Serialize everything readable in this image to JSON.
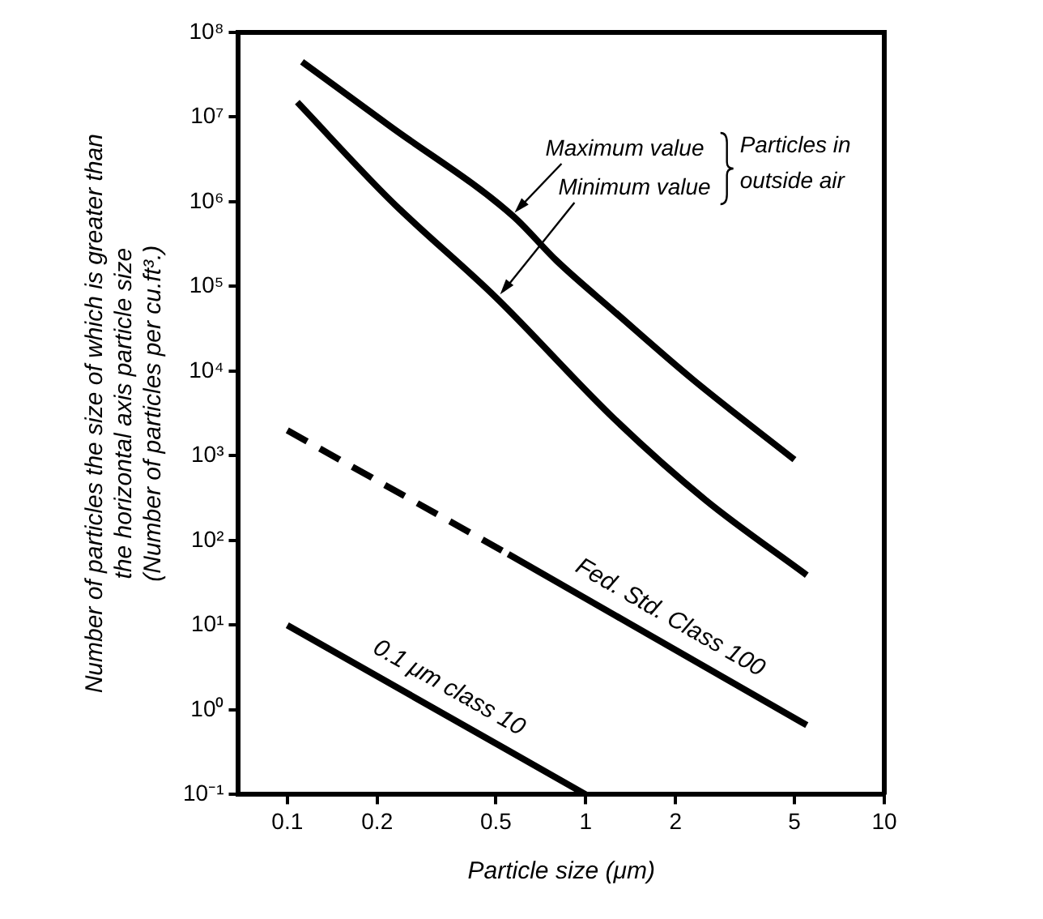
{
  "chart_data": {
    "type": "line",
    "xlabel": "Particle size (μm)",
    "ylabel": "Number of particles the size of which is greater than\nthe horizontal axis particle size\n(Number of particles per cu.ft³.)",
    "log": "xy",
    "xlim": [
      0.0686,
      10
    ],
    "ylim": [
      0.1,
      100000000
    ],
    "xticks": [
      0.1,
      0.2,
      0.5,
      1,
      2,
      5,
      10
    ],
    "yticks": [
      {
        "value": 0.1,
        "label": "10⁻¹"
      },
      {
        "value": 1,
        "label": "10⁰"
      },
      {
        "value": 10,
        "label": "10¹"
      },
      {
        "value": 100,
        "label": "10²"
      },
      {
        "value": 1000,
        "label": "10³"
      },
      {
        "value": 10000,
        "label": "10⁴"
      },
      {
        "value": 100000,
        "label": "10⁵"
      },
      {
        "value": 1000000,
        "label": "10⁶"
      },
      {
        "value": 10000000,
        "label": "10⁷"
      },
      {
        "value": 100000000,
        "label": "10⁸"
      }
    ],
    "grid": false,
    "legend": false,
    "marker": "none",
    "line_style": "solid",
    "annotations": [
      {
        "text": "Maximum value",
        "x": 0.57,
        "y": 680000
      },
      {
        "text": "Minimum value",
        "x": 0.51,
        "y": 74000
      },
      "Particles in outside air"
    ],
    "series": [
      {
        "x": [
          0.112,
          0.221,
          0.57,
          0.8,
          1.25,
          2.27,
          5.0
        ],
        "values": [
          45000000,
          7800000,
          680000,
          200000,
          50000,
          8100,
          900
        ],
        "color": "#000000"
      },
      {
        "x": [
          0.108,
          0.221,
          0.5,
          1.25,
          2.52,
          5.5
        ],
        "values": [
          15000000,
          1050000,
          74000,
          2700,
          300,
          39
        ],
        "color": "#000000"
      },
      {
        "x": [
          0.1,
          0.55
        ],
        "values": [
          2000,
          69
        ],
        "color": "#000000",
        "line_style": "dashed"
      },
      {
        "name": "Fed. Std. Class 100",
        "x": [
          0.55,
          5.5
        ],
        "values": [
          69,
          0.66
        ],
        "color": "#000000"
      },
      {
        "name": "0.1 μm class 10",
        "x": [
          0.1,
          1
        ],
        "values": [
          10,
          0.1
        ],
        "color": "#000000"
      }
    ]
  }
}
